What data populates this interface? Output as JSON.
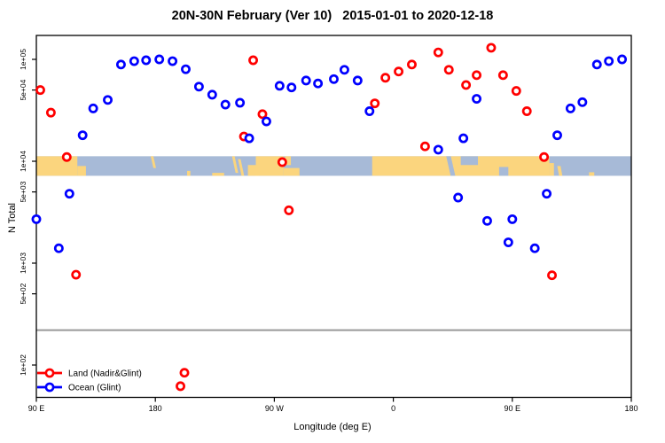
{
  "title": "20N-30N February (Ver 10)   2015-01-01 to 2020-12-18",
  "colors": {
    "land": "#ff0000",
    "ocean": "#0000ff",
    "map_land": "#fbd57e",
    "map_ocean": "#a7bad7",
    "reference_line": "#999999",
    "axis": "#000000",
    "point_fill": "#ffffff"
  },
  "legend": {
    "items": [
      {
        "id": "land",
        "label": "Land (Nadir&Glint)",
        "color": "#ff0000"
      },
      {
        "id": "ocean",
        "label": "Ocean (Glint)",
        "color": "#0000ff"
      }
    ]
  },
  "chart_data": {
    "type": "scatter",
    "title": "20N-30N February (Ver 10)   2015-01-01 to 2020-12-18",
    "xlabel": "Longitude (deg E)",
    "ylabel": "N Total",
    "x_axis": {
      "note": "longitude axis wraps eastward from 90E; stored as continuous deg 90..540",
      "range": [
        90,
        540
      ],
      "tick_values": [
        90,
        180,
        270,
        360,
        450,
        540
      ],
      "tick_labels": [
        "90 E",
        "180",
        "90 W",
        "0",
        "90 E",
        "180"
      ]
    },
    "y_axis": {
      "scale": "log",
      "range": [
        48,
        172000
      ],
      "tick_values": [
        100000,
        50000,
        10000,
        5000,
        1000,
        500,
        100
      ],
      "tick_labels": [
        "1e+05",
        "5e+04",
        "1e+04",
        "5e+03",
        "1e+03",
        "5e+02",
        "1e+02"
      ]
    },
    "reference_line_value": 220,
    "map_band": {
      "v_top": 11200,
      "v_bottom": 7200,
      "segments": [
        {
          "d0": 90,
          "d1": 121,
          "f0": 0,
          "f1": 1,
          "c": "land"
        },
        {
          "d0": 121,
          "d1": 127.5,
          "f0": 0.5,
          "f1": 1,
          "c": "land"
        },
        {
          "d0": 176.5,
          "d1": 178.5,
          "f0": 0,
          "f1": 0.6,
          "skew": 3,
          "c": "land"
        },
        {
          "d0": 204,
          "d1": 206.5,
          "f0": 0.75,
          "f1": 1,
          "c": "land"
        },
        {
          "d0": 223,
          "d1": 232,
          "f0": 0.85,
          "f1": 1,
          "c": "land"
        },
        {
          "d0": 238,
          "d1": 240,
          "f0": 0,
          "f1": 0.85,
          "skew": 4,
          "c": "land"
        },
        {
          "d0": 242.5,
          "d1": 244.5,
          "f0": 0.15,
          "f1": 1,
          "skew": 4,
          "c": "land"
        },
        {
          "d0": 250,
          "d1": 258,
          "f0": 0.45,
          "f1": 1,
          "c": "land"
        },
        {
          "d0": 256,
          "d1": 277,
          "f0": 0,
          "f1": 1,
          "c": "land"
        },
        {
          "d0": 277,
          "d1": 289,
          "f0": 0.6,
          "f1": 1,
          "c": "land"
        },
        {
          "d0": 278,
          "d1": 282.5,
          "f0": 0,
          "f1": 0.45,
          "c": "land"
        },
        {
          "d0": 344,
          "d1": 478,
          "f0": 0,
          "f1": 1,
          "c": "land"
        },
        {
          "d0": 478,
          "d1": 481.5,
          "f0": 0.35,
          "f1": 1,
          "c": "land"
        },
        {
          "d0": 484,
          "d1": 486.5,
          "f0": 0.5,
          "f1": 1,
          "skew": 2,
          "c": "land"
        },
        {
          "d0": 508,
          "d1": 512,
          "f0": 0.82,
          "f1": 1,
          "c": "land"
        },
        {
          "d0": 400,
          "d1": 403.5,
          "f0": 0,
          "f1": 1,
          "skew": 5,
          "c": "ocean"
        },
        {
          "d0": 411,
          "d1": 424,
          "f0": 0,
          "f1": 0.45,
          "c": "ocean"
        },
        {
          "d0": 440,
          "d1": 447,
          "f0": 0.55,
          "f1": 1,
          "c": "ocean"
        }
      ]
    },
    "series": [
      {
        "name": "Land (Nadir&Glint)",
        "color": "#ff0000",
        "points": [
          [
            93,
            50000
          ],
          [
            101,
            30000
          ],
          [
            113,
            11000
          ],
          [
            120,
            770
          ],
          [
            199,
            62
          ],
          [
            202,
            84
          ],
          [
            247,
            17500
          ],
          [
            254,
            98000
          ],
          [
            261,
            29000
          ],
          [
            276,
            9800
          ],
          [
            281,
            3300
          ],
          [
            346,
            37000
          ],
          [
            354,
            66000
          ],
          [
            364,
            76000
          ],
          [
            374,
            89000
          ],
          [
            384,
            14000
          ],
          [
            394,
            117000
          ],
          [
            402,
            79000
          ],
          [
            415,
            56000
          ],
          [
            423,
            70000
          ],
          [
            434,
            130000
          ],
          [
            443,
            70000
          ],
          [
            453,
            49000
          ],
          [
            461,
            31000
          ],
          [
            474,
            11000
          ],
          [
            480,
            760
          ]
        ]
      },
      {
        "name": "Ocean (Glint)",
        "color": "#0000ff",
        "points": [
          [
            90,
            2700
          ],
          [
            107,
            1400
          ],
          [
            115,
            4800
          ],
          [
            125,
            18000
          ],
          [
            133,
            33000
          ],
          [
            144,
            40000
          ],
          [
            154,
            89000
          ],
          [
            164,
            96000
          ],
          [
            173,
            98000
          ],
          [
            183,
            100000
          ],
          [
            193,
            96000
          ],
          [
            203,
            80000
          ],
          [
            213,
            54000
          ],
          [
            223,
            45000
          ],
          [
            233,
            36000
          ],
          [
            244,
            37500
          ],
          [
            251,
            16800
          ],
          [
            264,
            24600
          ],
          [
            274,
            55000
          ],
          [
            283,
            53000
          ],
          [
            294,
            62000
          ],
          [
            303,
            58000
          ],
          [
            315,
            64000
          ],
          [
            323,
            79000
          ],
          [
            333,
            62000
          ],
          [
            342,
            31000
          ],
          [
            394,
            13000
          ],
          [
            409,
            4400
          ],
          [
            413,
            16800
          ],
          [
            423,
            41000
          ],
          [
            431,
            2600
          ],
          [
            447,
            1600
          ],
          [
            450,
            2700
          ],
          [
            467,
            1400
          ],
          [
            476,
            4800
          ],
          [
            484,
            18000
          ],
          [
            494,
            33000
          ],
          [
            503,
            38000
          ],
          [
            514,
            89000
          ],
          [
            523,
            96000
          ],
          [
            533,
            100000
          ]
        ]
      }
    ]
  }
}
